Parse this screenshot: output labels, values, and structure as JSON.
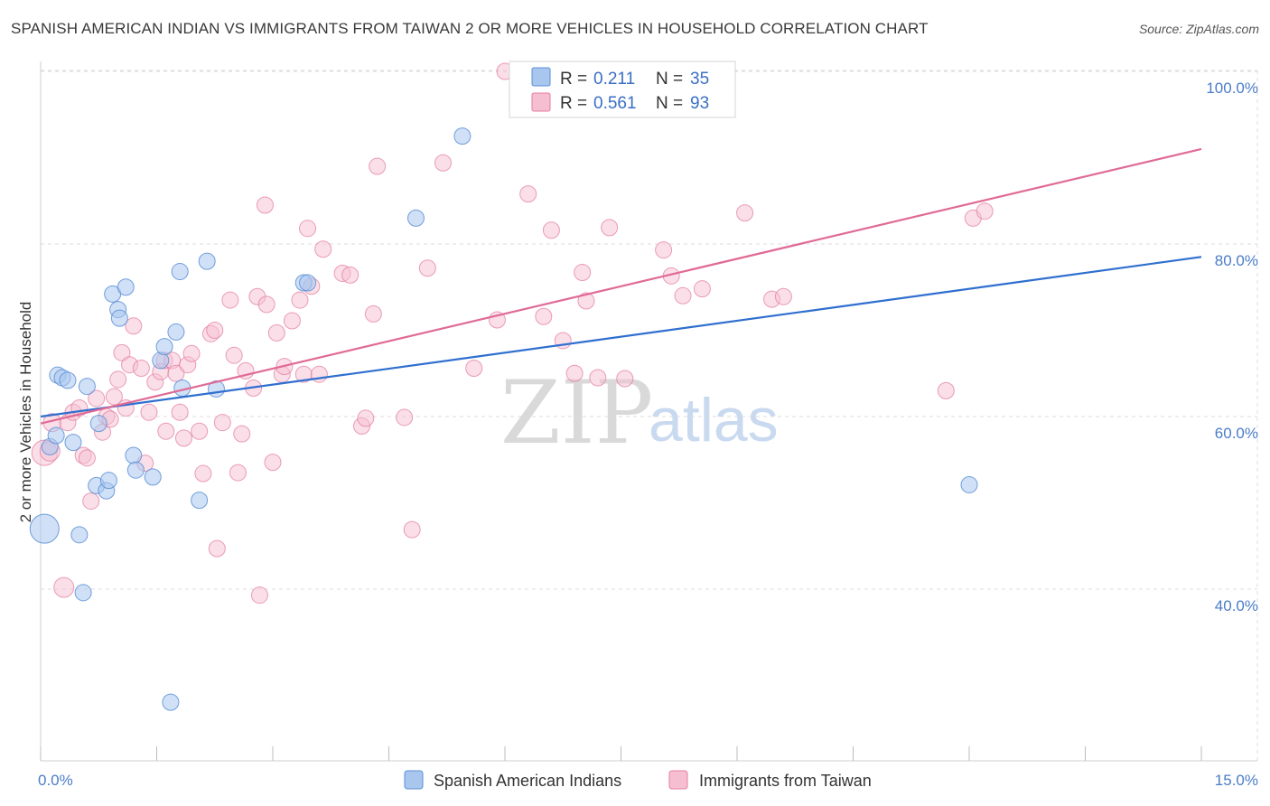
{
  "title": "SPANISH AMERICAN INDIAN VS IMMIGRANTS FROM TAIWAN 2 OR MORE VEHICLES IN HOUSEHOLD CORRELATION CHART",
  "source": "Source: ZipAtlas.com",
  "watermark": {
    "zip": "ZIP",
    "atlas": "atlas"
  },
  "legend": {
    "r_label": "R =",
    "n_label": "N =",
    "rows": [
      {
        "r": "0.211",
        "n": "35"
      },
      {
        "r": "0.561",
        "n": "93"
      }
    ]
  },
  "bottom_legend": [
    "Spanish American Indians",
    "Immigrants from Taiwan"
  ],
  "colors": {
    "blue_fill": "#a9c6ee",
    "blue_stroke": "#5b8fd6",
    "blue_line": "#2f6fcf",
    "pink_fill": "#f6bfd1",
    "pink_stroke": "#e47ea0",
    "pink_line": "#e06a96",
    "grid": "#dcdcdc",
    "tick_text": "#4a7cc9"
  },
  "chart_data": {
    "type": "scatter",
    "title": "SPANISH AMERICAN INDIAN VS IMMIGRANTS FROM TAIWAN 2 OR MORE VEHICLES IN HOUSEHOLD CORRELATION CHART",
    "xlabel": "",
    "ylabel": "2 or more Vehicles in Household",
    "xlim": [
      0,
      15
    ],
    "ylim": [
      20,
      102
    ],
    "x_tick_labels": [
      "0.0%",
      "15.0%"
    ],
    "y_ticks": [
      40,
      60,
      80,
      100
    ],
    "y_tick_labels": [
      "40.0%",
      "60.0%",
      "80.0%",
      "100.0%"
    ],
    "series": [
      {
        "name": "Spanish American Indians",
        "r": 0.211,
        "n": 35,
        "trend": {
          "x": [
            0,
            15
          ],
          "y": [
            60.0,
            78.5
          ]
        },
        "points": [
          {
            "x": 0.05,
            "y": 47.0,
            "s": 16
          },
          {
            "x": 0.12,
            "y": 56.5,
            "s": 9
          },
          {
            "x": 0.2,
            "y": 57.8,
            "s": 9
          },
          {
            "x": 0.22,
            "y": 64.8,
            "s": 9
          },
          {
            "x": 0.28,
            "y": 64.5,
            "s": 9
          },
          {
            "x": 0.35,
            "y": 64.2,
            "s": 9
          },
          {
            "x": 0.42,
            "y": 57.0,
            "s": 9
          },
          {
            "x": 0.5,
            "y": 46.3,
            "s": 9
          },
          {
            "x": 0.55,
            "y": 39.6,
            "s": 9
          },
          {
            "x": 0.6,
            "y": 63.5,
            "s": 9
          },
          {
            "x": 0.72,
            "y": 52.0,
            "s": 9
          },
          {
            "x": 0.75,
            "y": 59.2,
            "s": 9
          },
          {
            "x": 0.85,
            "y": 51.4,
            "s": 9
          },
          {
            "x": 0.88,
            "y": 52.6,
            "s": 9
          },
          {
            "x": 0.93,
            "y": 74.2,
            "s": 9
          },
          {
            "x": 1.0,
            "y": 72.4,
            "s": 9
          },
          {
            "x": 1.02,
            "y": 71.4,
            "s": 9
          },
          {
            "x": 1.1,
            "y": 75.0,
            "s": 9
          },
          {
            "x": 1.2,
            "y": 55.5,
            "s": 9
          },
          {
            "x": 1.23,
            "y": 53.8,
            "s": 9
          },
          {
            "x": 1.45,
            "y": 53.0,
            "s": 9
          },
          {
            "x": 1.55,
            "y": 66.5,
            "s": 9
          },
          {
            "x": 1.6,
            "y": 68.1,
            "s": 9
          },
          {
            "x": 1.68,
            "y": 26.9,
            "s": 9
          },
          {
            "x": 1.75,
            "y": 69.8,
            "s": 9
          },
          {
            "x": 1.8,
            "y": 76.8,
            "s": 9
          },
          {
            "x": 1.83,
            "y": 63.3,
            "s": 9
          },
          {
            "x": 2.05,
            "y": 50.3,
            "s": 9
          },
          {
            "x": 2.15,
            "y": 78.0,
            "s": 9
          },
          {
            "x": 2.27,
            "y": 63.2,
            "s": 9
          },
          {
            "x": 3.4,
            "y": 75.5,
            "s": 9
          },
          {
            "x": 3.45,
            "y": 75.5,
            "s": 9
          },
          {
            "x": 4.85,
            "y": 83.0,
            "s": 9
          },
          {
            "x": 5.45,
            "y": 92.5,
            "s": 9
          },
          {
            "x": 12.0,
            "y": 52.1,
            "s": 9
          }
        ]
      },
      {
        "name": "Immigrants from Taiwan",
        "r": 0.561,
        "n": 93,
        "trend": {
          "x": [
            0,
            15
          ],
          "y": [
            59.2,
            91.0
          ]
        },
        "points": [
          {
            "x": 0.05,
            "y": 55.8,
            "s": 14
          },
          {
            "x": 0.12,
            "y": 56.0,
            "s": 11
          },
          {
            "x": 0.15,
            "y": 59.3,
            "s": 10
          },
          {
            "x": 0.3,
            "y": 40.2,
            "s": 11
          },
          {
            "x": 0.35,
            "y": 59.3,
            "s": 9
          },
          {
            "x": 0.42,
            "y": 60.5,
            "s": 9
          },
          {
            "x": 0.5,
            "y": 61.0,
            "s": 9
          },
          {
            "x": 0.55,
            "y": 55.5,
            "s": 9
          },
          {
            "x": 0.6,
            "y": 55.2,
            "s": 9
          },
          {
            "x": 0.65,
            "y": 50.2,
            "s": 9
          },
          {
            "x": 0.72,
            "y": 62.1,
            "s": 9
          },
          {
            "x": 0.8,
            "y": 58.2,
            "s": 9
          },
          {
            "x": 0.85,
            "y": 60.0,
            "s": 9
          },
          {
            "x": 0.9,
            "y": 59.7,
            "s": 9
          },
          {
            "x": 0.95,
            "y": 62.3,
            "s": 9
          },
          {
            "x": 1.0,
            "y": 64.3,
            "s": 9
          },
          {
            "x": 1.05,
            "y": 67.4,
            "s": 9
          },
          {
            "x": 1.1,
            "y": 61.0,
            "s": 9
          },
          {
            "x": 1.15,
            "y": 66.0,
            "s": 9
          },
          {
            "x": 1.2,
            "y": 70.5,
            "s": 9
          },
          {
            "x": 1.3,
            "y": 65.6,
            "s": 9
          },
          {
            "x": 1.35,
            "y": 54.6,
            "s": 9
          },
          {
            "x": 1.4,
            "y": 60.5,
            "s": 9
          },
          {
            "x": 1.48,
            "y": 64.0,
            "s": 9
          },
          {
            "x": 1.55,
            "y": 65.2,
            "s": 9
          },
          {
            "x": 1.6,
            "y": 66.5,
            "s": 9
          },
          {
            "x": 1.62,
            "y": 58.3,
            "s": 9
          },
          {
            "x": 1.7,
            "y": 66.5,
            "s": 9
          },
          {
            "x": 1.75,
            "y": 65.0,
            "s": 9
          },
          {
            "x": 1.8,
            "y": 60.5,
            "s": 9
          },
          {
            "x": 1.85,
            "y": 57.5,
            "s": 9
          },
          {
            "x": 1.9,
            "y": 66.0,
            "s": 9
          },
          {
            "x": 1.95,
            "y": 67.3,
            "s": 9
          },
          {
            "x": 2.05,
            "y": 58.3,
            "s": 9
          },
          {
            "x": 2.1,
            "y": 53.4,
            "s": 9
          },
          {
            "x": 2.2,
            "y": 69.6,
            "s": 9
          },
          {
            "x": 2.25,
            "y": 70.0,
            "s": 9
          },
          {
            "x": 2.28,
            "y": 44.7,
            "s": 9
          },
          {
            "x": 2.35,
            "y": 59.3,
            "s": 9
          },
          {
            "x": 2.45,
            "y": 73.5,
            "s": 9
          },
          {
            "x": 2.5,
            "y": 67.1,
            "s": 9
          },
          {
            "x": 2.55,
            "y": 53.5,
            "s": 9
          },
          {
            "x": 2.6,
            "y": 58.0,
            "s": 9
          },
          {
            "x": 2.65,
            "y": 65.3,
            "s": 9
          },
          {
            "x": 2.75,
            "y": 63.3,
            "s": 9
          },
          {
            "x": 2.8,
            "y": 73.9,
            "s": 9
          },
          {
            "x": 2.83,
            "y": 39.3,
            "s": 9
          },
          {
            "x": 2.9,
            "y": 84.5,
            "s": 9
          },
          {
            "x": 2.92,
            "y": 73.0,
            "s": 9
          },
          {
            "x": 3.0,
            "y": 54.7,
            "s": 9
          },
          {
            "x": 3.05,
            "y": 69.7,
            "s": 9
          },
          {
            "x": 3.12,
            "y": 64.9,
            "s": 9
          },
          {
            "x": 3.15,
            "y": 65.8,
            "s": 9
          },
          {
            "x": 3.25,
            "y": 71.1,
            "s": 9
          },
          {
            "x": 3.35,
            "y": 73.5,
            "s": 9
          },
          {
            "x": 3.4,
            "y": 64.9,
            "s": 9
          },
          {
            "x": 3.45,
            "y": 81.8,
            "s": 9
          },
          {
            "x": 3.5,
            "y": 75.1,
            "s": 9
          },
          {
            "x": 3.6,
            "y": 64.9,
            "s": 9
          },
          {
            "x": 3.65,
            "y": 79.4,
            "s": 9
          },
          {
            "x": 3.9,
            "y": 76.6,
            "s": 9
          },
          {
            "x": 4.0,
            "y": 76.4,
            "s": 9
          },
          {
            "x": 4.15,
            "y": 58.9,
            "s": 9
          },
          {
            "x": 4.2,
            "y": 59.8,
            "s": 9
          },
          {
            "x": 4.3,
            "y": 71.9,
            "s": 9
          },
          {
            "x": 4.35,
            "y": 89.0,
            "s": 9
          },
          {
            "x": 4.7,
            "y": 59.9,
            "s": 9
          },
          {
            "x": 4.8,
            "y": 46.9,
            "s": 9
          },
          {
            "x": 5.0,
            "y": 77.2,
            "s": 9
          },
          {
            "x": 5.2,
            "y": 89.4,
            "s": 9
          },
          {
            "x": 5.6,
            "y": 65.6,
            "s": 9
          },
          {
            "x": 5.9,
            "y": 71.2,
            "s": 9
          },
          {
            "x": 6.0,
            "y": 100.0,
            "s": 9
          },
          {
            "x": 6.3,
            "y": 85.8,
            "s": 9
          },
          {
            "x": 6.5,
            "y": 71.6,
            "s": 9
          },
          {
            "x": 6.6,
            "y": 81.6,
            "s": 9
          },
          {
            "x": 6.75,
            "y": 68.8,
            "s": 9
          },
          {
            "x": 6.9,
            "y": 65.0,
            "s": 9
          },
          {
            "x": 7.0,
            "y": 76.7,
            "s": 9
          },
          {
            "x": 7.05,
            "y": 73.4,
            "s": 9
          },
          {
            "x": 7.2,
            "y": 64.5,
            "s": 9
          },
          {
            "x": 7.35,
            "y": 81.9,
            "s": 9
          },
          {
            "x": 7.55,
            "y": 64.4,
            "s": 9
          },
          {
            "x": 8.05,
            "y": 79.3,
            "s": 9
          },
          {
            "x": 8.15,
            "y": 76.3,
            "s": 9
          },
          {
            "x": 8.3,
            "y": 74.0,
            "s": 9
          },
          {
            "x": 8.55,
            "y": 74.8,
            "s": 9
          },
          {
            "x": 9.1,
            "y": 83.6,
            "s": 9
          },
          {
            "x": 9.45,
            "y": 73.6,
            "s": 9
          },
          {
            "x": 9.6,
            "y": 73.9,
            "s": 9
          },
          {
            "x": 11.7,
            "y": 63.0,
            "s": 9
          },
          {
            "x": 12.05,
            "y": 83.0,
            "s": 9
          },
          {
            "x": 12.2,
            "y": 83.8,
            "s": 9
          }
        ]
      }
    ]
  }
}
